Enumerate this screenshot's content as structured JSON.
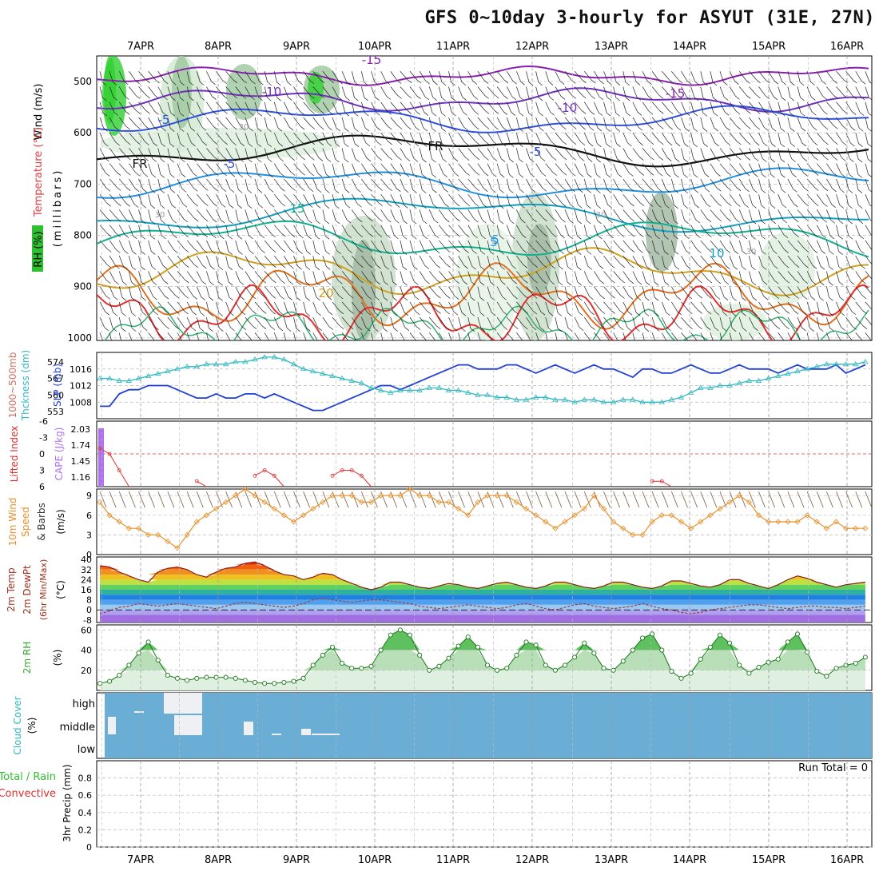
{
  "title": "GFS 0~10day 3-hourly for ASYUT (31E, 27N)",
  "date_labels": [
    "7APR",
    "8APR",
    "9APR",
    "10APR",
    "11APR",
    "12APR",
    "13APR",
    "14APR",
    "15APR",
    "16APR"
  ],
  "panels": {
    "upper": {
      "ylabel_wind": "Wind (m/s)",
      "ylabel_temp": "Temperature (°C)",
      "ylabel_rh": "RH (%)",
      "ylabel_unit": "(millibars)",
      "yticks": [
        "500",
        "600",
        "700",
        "800",
        "900",
        "1000"
      ],
      "contour_labels": [
        "-15",
        "-10",
        "-5",
        "-5",
        "-10",
        "-15",
        "-5",
        "5",
        "15",
        "5",
        "10",
        "20",
        "FR",
        "FR",
        "30",
        "30",
        "30",
        "30"
      ]
    },
    "slp": {
      "ylabel_thk1": "1000~500mb",
      "ylabel_thk2": "Thckness (dm)",
      "ylabel_slp": "SLP (mb)",
      "yticks_left": [
        "574",
        "567",
        "560",
        "553"
      ],
      "yticks_right": [
        "1016",
        "1012",
        "1008"
      ]
    },
    "cape": {
      "ylabel_li": "Lifted Index",
      "ylabel_cape": "CAPE (J/kg)",
      "yticks_left": [
        "-6",
        "-3",
        "0",
        "3",
        "6"
      ],
      "yticks_right": [
        "2.03",
        "1.74",
        "1.45",
        "1.16"
      ]
    },
    "wind10": {
      "ylabel_1": "10m Wind",
      "ylabel_2": "Speed",
      "ylabel_3": "& Barbs",
      "ylabel_unit": "(m/s)",
      "yticks": [
        "9",
        "6",
        "3",
        "0"
      ]
    },
    "temp2m": {
      "ylabel_1": "2m Temp",
      "ylabel_2": "2m DewPt",
      "ylabel_3": "(6hr Min/Max)",
      "ylabel_unit": "(°C)",
      "yticks": [
        "40",
        "32",
        "24",
        "16",
        "8",
        "0",
        "-8"
      ]
    },
    "rh2m": {
      "ylabel": "2m RH",
      "ylabel_unit": "(%)",
      "yticks": [
        "60",
        "40",
        "20"
      ]
    },
    "cloud": {
      "ylabel": "Cloud Cover",
      "ylabel_unit": "(%)",
      "levels": [
        "high",
        "middle",
        "low"
      ]
    },
    "precip": {
      "ylabel_1": "Total / Rain",
      "ylabel_2": "Convective",
      "ylabel_3": "3hr Precip (mm)",
      "yticks": [
        "0.8",
        "0.6",
        "0.4",
        "0.2",
        "0"
      ],
      "run_total": "Run Total = 0"
    }
  },
  "colors": {
    "slp": "#1f3fd6",
    "thickness": "#2fb8c0",
    "lifted_index": "#e03030",
    "cape": "#b070f0",
    "wind10": "#e8902a",
    "rh": "#2faa2f",
    "cloud": "#6aaed6",
    "dewpoint": "#a04040",
    "temp": "#8b1a1a"
  },
  "chart_data": [
    {
      "type": "line",
      "name": "slp",
      "x_start": "6APR 12Z",
      "x_step_hours": 3,
      "ylabel": "SLP (mb)",
      "ylim": [
        1004,
        1020
      ],
      "values": [
        1007,
        1007,
        1010,
        1011,
        1011,
        1012,
        1012,
        1012,
        1011,
        1010,
        1009,
        1009,
        1010,
        1009,
        1009,
        1010,
        1010,
        1009,
        1010,
        1009,
        1008,
        1007,
        1006,
        1006,
        1007,
        1008,
        1009,
        1010,
        1011,
        1012,
        1012,
        1011,
        1012,
        1013,
        1014,
        1015,
        1016,
        1017,
        1017,
        1016,
        1016,
        1016,
        1017,
        1017,
        1016,
        1015,
        1016,
        1017,
        1016,
        1015,
        1016,
        1017,
        1016,
        1016,
        1015,
        1014,
        1016,
        1016,
        1015,
        1015,
        1016,
        1017,
        1016,
        1015,
        1015,
        1016,
        1017,
        1016,
        1016,
        1016,
        1015,
        1016,
        1017,
        1016,
        1016,
        1016,
        1017,
        1015,
        1016,
        1017
      ]
    },
    {
      "type": "line",
      "name": "thickness",
      "ylabel": "1000~500mb Thckness (dm)",
      "ylim": [
        550,
        578
      ],
      "values": [
        567,
        567,
        566,
        566,
        567,
        568,
        569,
        570,
        571,
        572,
        572,
        573,
        573,
        573,
        574,
        574,
        575,
        576,
        576,
        575,
        573,
        571,
        570,
        569,
        568,
        567,
        566,
        565,
        563,
        562,
        561,
        562,
        562,
        562,
        563,
        563,
        562,
        562,
        561,
        560,
        560,
        559,
        559,
        558,
        558,
        559,
        559,
        558,
        558,
        557,
        558,
        558,
        557,
        557,
        558,
        558,
        557,
        557,
        557,
        558,
        559,
        561,
        563,
        563,
        564,
        564,
        565,
        566,
        566,
        567,
        568,
        569,
        570,
        571,
        572,
        573,
        573,
        573,
        573,
        574
      ]
    },
    {
      "type": "line",
      "name": "lifted_index",
      "ylabel": "Lifted Index",
      "ylim": [
        6,
        -6
      ],
      "values": [
        -1,
        0,
        3,
        6,
        6,
        6,
        6,
        6,
        6,
        6,
        5,
        6,
        6,
        6,
        6,
        6,
        4,
        3,
        4,
        6,
        6,
        6,
        6,
        6,
        4,
        3,
        3,
        4,
        6,
        6,
        6,
        6,
        6,
        6,
        6,
        6,
        6,
        6,
        6,
        6,
        6,
        6,
        6,
        6,
        6,
        6,
        6,
        6,
        6,
        6,
        6,
        6,
        6,
        6,
        6,
        6,
        6,
        5,
        5,
        6,
        6,
        6,
        6,
        6,
        6,
        6,
        6,
        6,
        6,
        6,
        6,
        6,
        6,
        6,
        6,
        6,
        6,
        6,
        6,
        6
      ]
    },
    {
      "type": "line",
      "name": "wind10_speed",
      "ylabel": "(m/s)",
      "ylim": [
        0,
        10
      ],
      "values": [
        8,
        6,
        5,
        4,
        4,
        3,
        3,
        2,
        1,
        3,
        5,
        6,
        7,
        8,
        9,
        10,
        9,
        8,
        7,
        6,
        5,
        6,
        7,
        8,
        9,
        9,
        9,
        8,
        8,
        9,
        9,
        9,
        10,
        9,
        9,
        8,
        8,
        7,
        6,
        8,
        9,
        9,
        9,
        8,
        7,
        6,
        5,
        4,
        5,
        6,
        7,
        9,
        7,
        5,
        4,
        3,
        3,
        5,
        6,
        6,
        5,
        4,
        5,
        6,
        7,
        8,
        9,
        8,
        6,
        5,
        5,
        5,
        5,
        6,
        5,
        4,
        5,
        4,
        4,
        4
      ]
    },
    {
      "type": "area",
      "name": "temp2m",
      "ylabel": "(°C)",
      "ylim": [
        -10,
        42
      ],
      "values": [
        35,
        34,
        30,
        27,
        24,
        22,
        30,
        33,
        34,
        32,
        28,
        26,
        30,
        33,
        34,
        37,
        38,
        35,
        31,
        28,
        27,
        24,
        26,
        29,
        28,
        24,
        21,
        18,
        16,
        18,
        22,
        22,
        20,
        18,
        17,
        19,
        21,
        20,
        18,
        17,
        19,
        21,
        22,
        20,
        18,
        17,
        19,
        22,
        22,
        20,
        18,
        17,
        19,
        22,
        22,
        20,
        18,
        17,
        19,
        23,
        23,
        21,
        19,
        18,
        20,
        24,
        24,
        21,
        19,
        17,
        20,
        24,
        27,
        25,
        22,
        20,
        18,
        20,
        21,
        22
      ]
    },
    {
      "type": "line",
      "name": "dewpoint2m",
      "ylabel": "(°C)",
      "values": [
        -3,
        -1,
        2,
        3,
        5,
        4,
        3,
        4,
        5,
        4,
        3,
        2,
        1,
        3,
        5,
        6,
        5,
        4,
        3,
        2,
        3,
        5,
        8,
        9,
        8,
        7,
        6,
        7,
        8,
        8,
        7,
        6,
        5,
        3,
        2,
        1,
        2,
        3,
        4,
        3,
        2,
        1,
        2,
        4,
        5,
        3,
        1,
        0,
        2,
        4,
        5,
        3,
        2,
        1,
        2,
        3,
        5,
        3,
        1,
        0,
        -2,
        -3,
        -2,
        0,
        1,
        2,
        3,
        4,
        4,
        3,
        2,
        1,
        2,
        3,
        3,
        2,
        2,
        1,
        2,
        3
      ]
    },
    {
      "type": "area",
      "name": "rh2m",
      "ylabel": "(%)",
      "ylim": [
        0,
        65
      ],
      "values": [
        7,
        9,
        15,
        25,
        37,
        48,
        30,
        15,
        12,
        10,
        12,
        13,
        13,
        13,
        12,
        10,
        8,
        7,
        7,
        8,
        9,
        12,
        25,
        35,
        43,
        27,
        22,
        22,
        24,
        40,
        55,
        60,
        55,
        35,
        20,
        24,
        32,
        44,
        53,
        43,
        25,
        20,
        22,
        35,
        48,
        45,
        25,
        20,
        25,
        33,
        47,
        37,
        22,
        20,
        29,
        40,
        52,
        56,
        40,
        19,
        12,
        17,
        31,
        43,
        55,
        47,
        25,
        17,
        23,
        28,
        31,
        48,
        56,
        38,
        19,
        14,
        22,
        25,
        27,
        33
      ]
    },
    {
      "type": "heatmap",
      "name": "cloud_cover",
      "levels": [
        "high",
        "middle",
        "low"
      ],
      "note": "clear sky (white) patches in high/middle layers 7APR-9APR; otherwise overcast colour fill"
    },
    {
      "type": "bar",
      "name": "precip_3hr",
      "ylabel": "3hr Precip (mm)",
      "ylim": [
        0,
        1
      ],
      "values": []
    }
  ]
}
